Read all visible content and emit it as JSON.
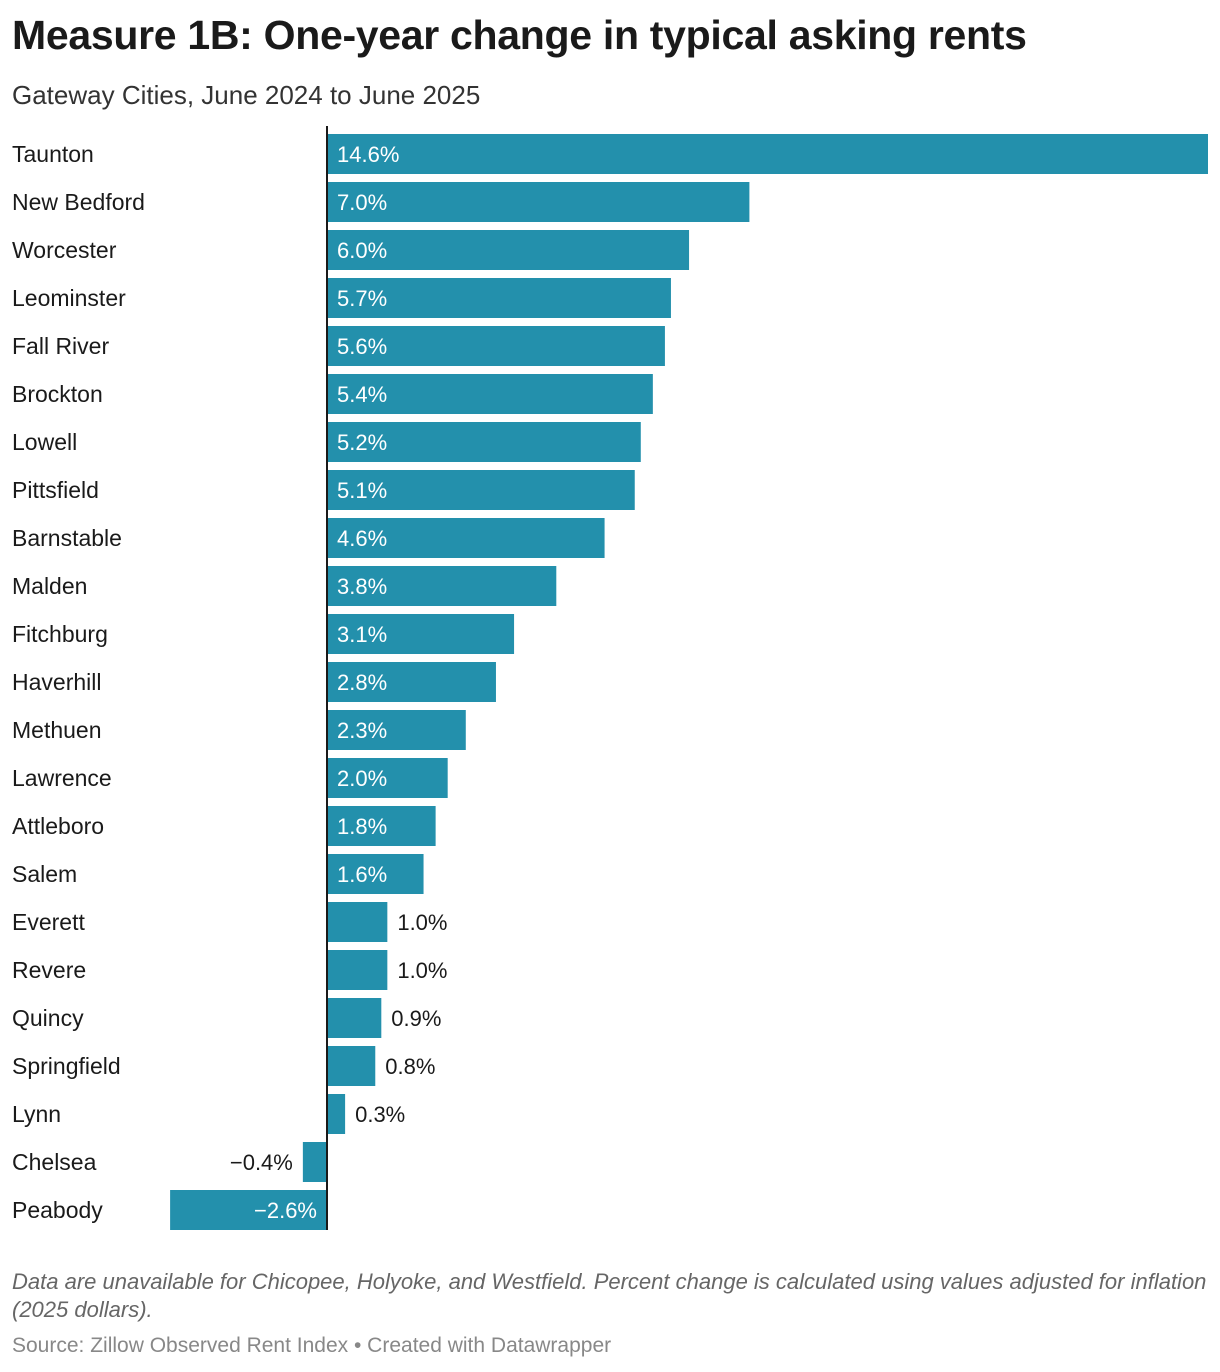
{
  "title": "Measure 1B: One-year change in typical asking rents",
  "subtitle": "Gateway Cities, June 2024 to June 2025",
  "notes": "Data are unavailable for Chicopee, Holyoke, and Westfield. Percent change is calculated using values adjusted for inflation (2025 dollars).",
  "source": "Source: Zillow Observed Rent Index • Created with Datawrapper",
  "colors": {
    "bar": "#2390ac",
    "axis": "#1a1a1a",
    "label_inside": "#ffffff",
    "label_outside": "#1a1a1a"
  },
  "chart_data": {
    "type": "bar",
    "orientation": "horizontal",
    "unit": "%",
    "xlim": [
      -2.6,
      14.6
    ],
    "grid": false,
    "categories": [
      "Taunton",
      "New Bedford",
      "Worcester",
      "Leominster",
      "Fall River",
      "Brockton",
      "Lowell",
      "Pittsfield",
      "Barnstable",
      "Malden",
      "Fitchburg",
      "Haverhill",
      "Methuen",
      "Lawrence",
      "Attleboro",
      "Salem",
      "Everett",
      "Revere",
      "Quincy",
      "Springfield",
      "Lynn",
      "Chelsea",
      "Peabody"
    ],
    "values": [
      14.6,
      7.0,
      6.0,
      5.7,
      5.6,
      5.4,
      5.2,
      5.1,
      4.6,
      3.8,
      3.1,
      2.8,
      2.3,
      2.0,
      1.8,
      1.6,
      1.0,
      1.0,
      0.9,
      0.8,
      0.3,
      -0.4,
      -2.6
    ],
    "labels": [
      "14.6%",
      "7.0%",
      "6.0%",
      "5.7%",
      "5.6%",
      "5.4%",
      "5.2%",
      "5.1%",
      "4.6%",
      "3.8%",
      "3.1%",
      "2.8%",
      "2.3%",
      "2.0%",
      "1.8%",
      "1.6%",
      "1.0%",
      "1.0%",
      "0.9%",
      "0.8%",
      "0.3%",
      "−0.4%",
      "−2.6%"
    ]
  }
}
